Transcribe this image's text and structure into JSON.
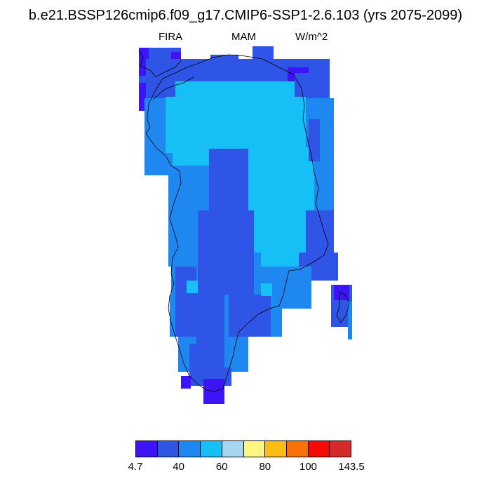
{
  "title": "b.e21.BSSP126cmip6.f09_g17.CMIP6-SSP1-2.6.103 (yrs 2075-2099)",
  "variable": "FIRA",
  "season": "MAM",
  "units": "W/m^2",
  "colors": {
    "c1": "#3c14f5",
    "c2": "#2f55e6",
    "c3": "#1e88f0",
    "c4": "#16bff6",
    "c5": "#a4d6f2",
    "c6": "#fff782",
    "c7": "#fbbd14",
    "c8": "#f87108",
    "c9": "#f40a06",
    "c10": "#d42a2a"
  },
  "colorbar": {
    "colors": [
      "#3c14f5",
      "#2f55e6",
      "#1e88f0",
      "#16bff6",
      "#a4d6f2",
      "#fff782",
      "#fbbd14",
      "#f87108",
      "#f40a06",
      "#d42a2a"
    ],
    "labels": [
      "4.7",
      "40",
      "60",
      "80",
      "100",
      "143.5"
    ]
  }
}
